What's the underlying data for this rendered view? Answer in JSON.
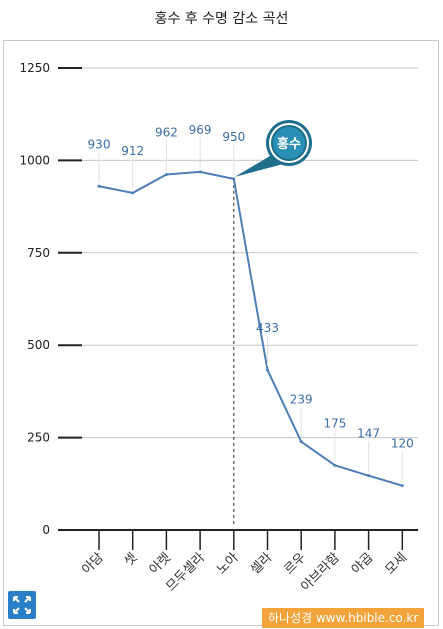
{
  "chart_data": {
    "type": "line",
    "title": "홍수 후 수명 감소 곡선",
    "xlabel": "",
    "ylabel": "",
    "categories": [
      "아담",
      "셋",
      "아렛",
      "므두셀라",
      "노아",
      "셀라",
      "르우",
      "아브라함",
      "야곱",
      "모세"
    ],
    "series": [
      {
        "values": [
          930,
          912,
          962,
          969,
          950,
          433,
          239,
          175,
          147,
          120
        ]
      }
    ],
    "ylim": [
      0,
      1250
    ],
    "yticks": [
      0,
      250,
      500,
      750,
      1000,
      1250
    ],
    "grid": true,
    "annotation": {
      "label": "홍수",
      "category": "노아"
    },
    "colors": {
      "line": "#4e7fb8",
      "value_label": "#3b6ea5",
      "badge_outer": "#1f6e8c",
      "badge_inner": "#2a8fb5",
      "badge_ring": "#ffffff",
      "grid": "#c8c8c8",
      "axis": "#222222"
    }
  },
  "ui": {
    "expand_icon": "expand-arrows-icon",
    "watermark": "하나성경 www.hbible.co.kr"
  }
}
